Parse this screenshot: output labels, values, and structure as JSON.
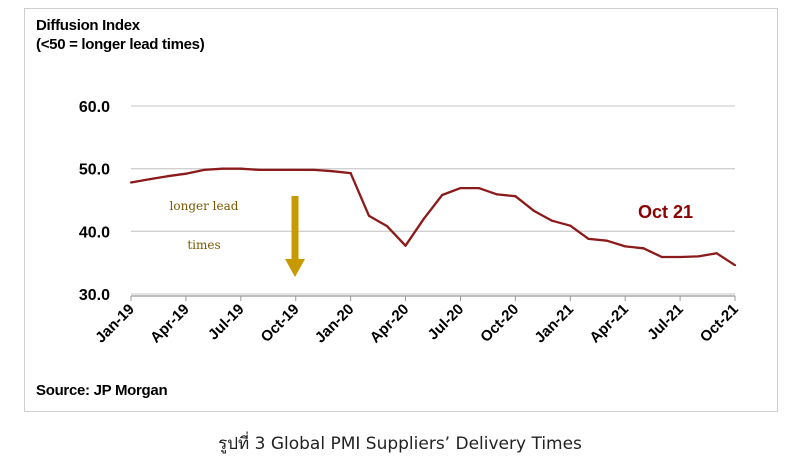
{
  "chart_data": {
    "type": "line",
    "ylabel_lines": [
      "Diffusion Index",
      "(<50 = longer lead times)"
    ],
    "ylim": [
      30.0,
      60.0
    ],
    "yticks": [
      "30.0",
      "40.0",
      "50.0",
      "60.0"
    ],
    "x_tick_labels": [
      "Jan-19",
      "Apr-19",
      "Jul-19",
      "Oct-19",
      "Jan-20",
      "Apr-20",
      "Jul-20",
      "Oct-20",
      "Jan-21",
      "Apr-21",
      "Jul-21",
      "Oct-21"
    ],
    "grid": "horizontal",
    "series": [
      {
        "color": "#8b1a1a",
        "x": [
          "Jan-19",
          "Feb-19",
          "Mar-19",
          "Apr-19",
          "May-19",
          "Jun-19",
          "Jul-19",
          "Aug-19",
          "Sep-19",
          "Oct-19",
          "Nov-19",
          "Dec-19",
          "Jan-20",
          "Feb-20",
          "Mar-20",
          "Apr-20",
          "May-20",
          "Jun-20",
          "Jul-20",
          "Aug-20",
          "Sep-20",
          "Oct-20",
          "Nov-20",
          "Dec-20",
          "Jan-21",
          "Feb-21",
          "Mar-21",
          "Apr-21",
          "May-21",
          "Jun-21",
          "Jul-21",
          "Aug-21",
          "Sep-21",
          "Oct-21"
        ],
        "values": [
          47.8,
          48.3,
          48.8,
          49.2,
          49.8,
          50.0,
          50.0,
          49.8,
          49.8,
          49.8,
          49.8,
          49.6,
          49.3,
          42.5,
          40.8,
          37.7,
          42.0,
          45.8,
          46.9,
          46.9,
          45.9,
          45.6,
          43.3,
          41.7,
          40.9,
          38.8,
          38.5,
          37.6,
          37.3,
          35.9,
          35.9,
          36.0,
          36.5,
          34.6
        ]
      }
    ],
    "annotations": {
      "longer_lead_1": "longer lead",
      "longer_lead_2": "times",
      "series_callout": "Oct 21"
    },
    "arrow_color": "#c89a00"
  },
  "source": "Source: JP Morgan",
  "caption": "รูปที่ 3 Global PMI Suppliers’ Delivery Times"
}
